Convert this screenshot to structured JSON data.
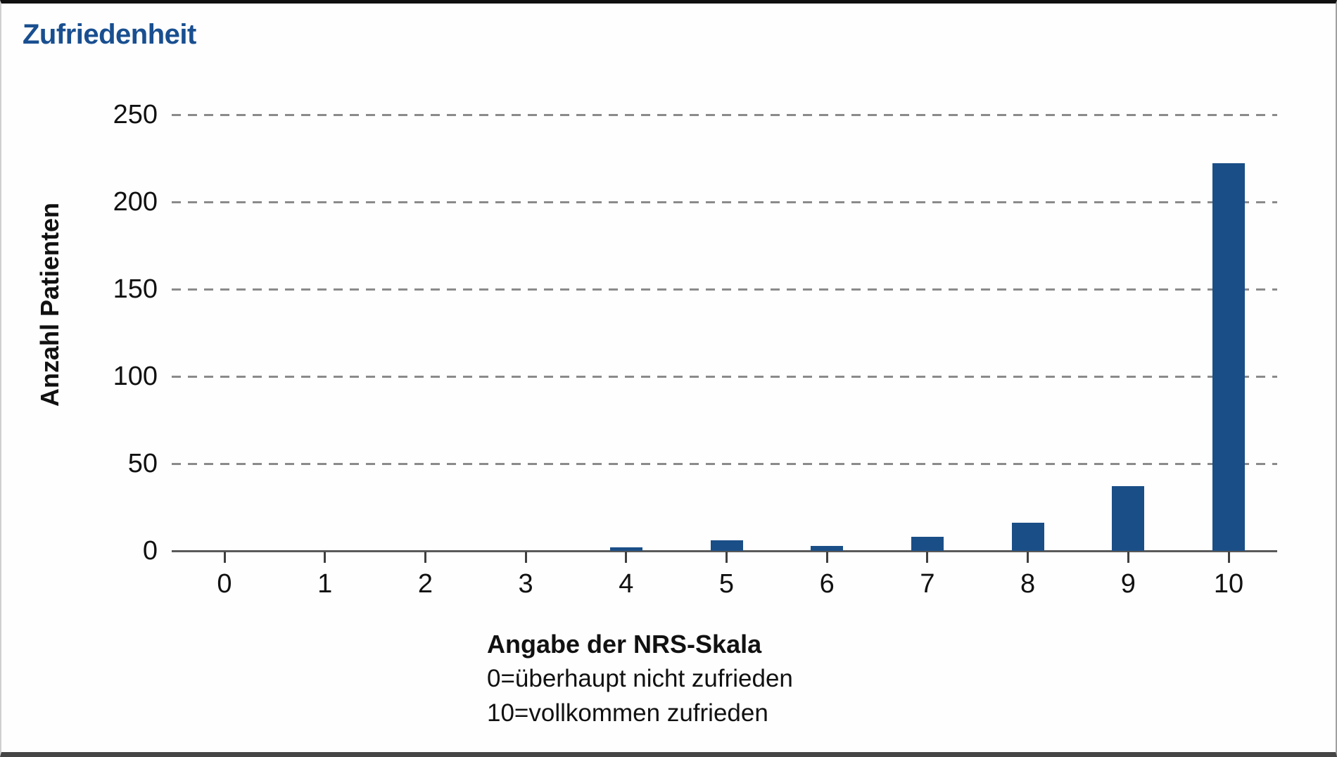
{
  "title": "Zufriedenheit",
  "colors": {
    "bar": "#1a4e87",
    "title": "#194f90",
    "gridline": "#8b8b8b",
    "axis_line": "#5a5a5a"
  },
  "chart_data": {
    "type": "bar",
    "title": "Zufriedenheit",
    "categories": [
      "0",
      "1",
      "2",
      "3",
      "4",
      "5",
      "6",
      "7",
      "8",
      "9",
      "10"
    ],
    "values": [
      0,
      0,
      0,
      0,
      2,
      6,
      3,
      8,
      16,
      37,
      222
    ],
    "xlabel": "Angabe der NRS-Skala",
    "ylabel": "Anzahl Patienten",
    "ylim": [
      0,
      250
    ],
    "yticks": [
      0,
      50,
      100,
      150,
      200,
      250
    ],
    "grid": "horizontal dashed gridlines, solid baseline, no vertical axis line",
    "legend": "none",
    "notes": [
      "0=überhaupt nicht zufrieden",
      "10=vollkommen zufrieden"
    ]
  }
}
